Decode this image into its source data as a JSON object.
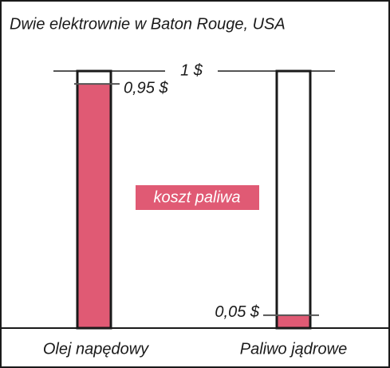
{
  "chart_data": {
    "type": "bar",
    "title": "Dwie elektrownie w Baton Rouge, USA",
    "categories": [
      "Olej napędowy",
      "Paliwo jądrowe"
    ],
    "values": [
      0.95,
      0.05
    ],
    "value_labels": [
      "0,95 $",
      "0,05 $"
    ],
    "color": "#e05a74",
    "ylim": [
      0,
      1
    ],
    "yticks": [
      {
        "value": 1,
        "label": "1 $"
      }
    ],
    "annotations": [
      "koszt paliwa"
    ]
  }
}
